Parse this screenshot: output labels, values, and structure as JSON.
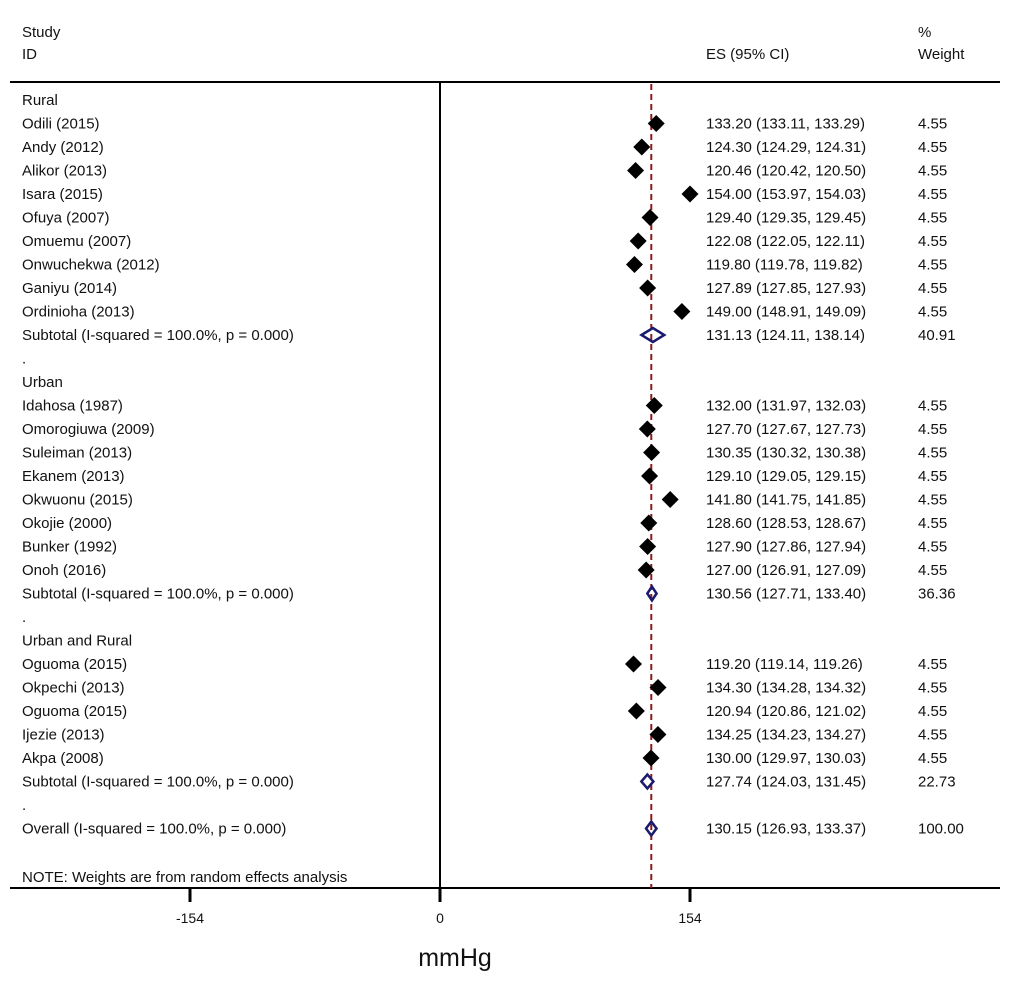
{
  "header": {
    "study_line1": "Study",
    "study_line2": "ID",
    "es_label": "ES (95% CI)",
    "weight_line1": "%",
    "weight_line2": "Weight"
  },
  "footer": {
    "note": "NOTE: Weights are from random effects analysis"
  },
  "colors": {
    "point": "#000000",
    "diamond": "#1a1a6e",
    "overall_line": "#8b1a1a",
    "axis": "#000000"
  },
  "chart_data": {
    "type": "forest",
    "xlabel": "mmHg",
    "xticks": [
      -154,
      0,
      154
    ],
    "xlim": [
      -154,
      154
    ],
    "overall_es": 130.15,
    "rows": [
      {
        "kind": "group",
        "label": "Rural"
      },
      {
        "kind": "study",
        "label": "Odili (2015)",
        "es": 133.2,
        "lo": 133.11,
        "hi": 133.29,
        "ci": "133.20 (133.11, 133.29)",
        "weight": "4.55"
      },
      {
        "kind": "study",
        "label": "Andy (2012)",
        "es": 124.3,
        "lo": 124.29,
        "hi": 124.31,
        "ci": "124.30 (124.29, 124.31)",
        "weight": "4.55"
      },
      {
        "kind": "study",
        "label": "Alikor (2013)",
        "es": 120.46,
        "lo": 120.42,
        "hi": 120.5,
        "ci": "120.46 (120.42, 120.50)",
        "weight": "4.55"
      },
      {
        "kind": "study",
        "label": "Isara (2015)",
        "es": 154.0,
        "lo": 153.97,
        "hi": 154.03,
        "ci": "154.00 (153.97, 154.03)",
        "weight": "4.55"
      },
      {
        "kind": "study",
        "label": "Ofuya (2007)",
        "es": 129.4,
        "lo": 129.35,
        "hi": 129.45,
        "ci": "129.40 (129.35, 129.45)",
        "weight": "4.55"
      },
      {
        "kind": "study",
        "label": "Omuemu (2007)",
        "es": 122.08,
        "lo": 122.05,
        "hi": 122.11,
        "ci": "122.08 (122.05, 122.11)",
        "weight": "4.55"
      },
      {
        "kind": "study",
        "label": "Onwuchekwa (2012)",
        "es": 119.8,
        "lo": 119.78,
        "hi": 119.82,
        "ci": "119.80 (119.78, 119.82)",
        "weight": "4.55"
      },
      {
        "kind": "study",
        "label": "Ganiyu (2014)",
        "es": 127.89,
        "lo": 127.85,
        "hi": 127.93,
        "ci": "127.89 (127.85, 127.93)",
        "weight": "4.55"
      },
      {
        "kind": "study",
        "label": "Ordinioha (2013)",
        "es": 149.0,
        "lo": 148.91,
        "hi": 149.09,
        "ci": "149.00 (148.91, 149.09)",
        "weight": "4.55"
      },
      {
        "kind": "subtotal",
        "label": "Subtotal  (I-squared = 100.0%, p = 0.000)",
        "es": 131.13,
        "lo": 124.11,
        "hi": 138.14,
        "ci": "131.13 (124.11, 138.14)",
        "weight": "40.91"
      },
      {
        "kind": "spacer",
        "label": "."
      },
      {
        "kind": "group",
        "label": "Urban"
      },
      {
        "kind": "study",
        "label": "Idahosa (1987)",
        "es": 132.0,
        "lo": 131.97,
        "hi": 132.03,
        "ci": "132.00 (131.97, 132.03)",
        "weight": "4.55"
      },
      {
        "kind": "study",
        "label": "Omorogiuwa (2009)",
        "es": 127.7,
        "lo": 127.67,
        "hi": 127.73,
        "ci": "127.70 (127.67, 127.73)",
        "weight": "4.55"
      },
      {
        "kind": "study",
        "label": "Suleiman (2013)",
        "es": 130.35,
        "lo": 130.32,
        "hi": 130.38,
        "ci": "130.35 (130.32, 130.38)",
        "weight": "4.55"
      },
      {
        "kind": "study",
        "label": "Ekanem (2013)",
        "es": 129.1,
        "lo": 129.05,
        "hi": 129.15,
        "ci": "129.10 (129.05, 129.15)",
        "weight": "4.55"
      },
      {
        "kind": "study",
        "label": "Okwuonu (2015)",
        "es": 141.8,
        "lo": 141.75,
        "hi": 141.85,
        "ci": "141.80 (141.75, 141.85)",
        "weight": "4.55"
      },
      {
        "kind": "study",
        "label": "Okojie (2000)",
        "es": 128.6,
        "lo": 128.53,
        "hi": 128.67,
        "ci": "128.60 (128.53, 128.67)",
        "weight": "4.55"
      },
      {
        "kind": "study",
        "label": "Bunker (1992)",
        "es": 127.9,
        "lo": 127.86,
        "hi": 127.94,
        "ci": "127.90 (127.86, 127.94)",
        "weight": "4.55"
      },
      {
        "kind": "study",
        "label": "Onoh (2016)",
        "es": 127.0,
        "lo": 126.91,
        "hi": 127.09,
        "ci": "127.00 (126.91, 127.09)",
        "weight": "4.55"
      },
      {
        "kind": "subtotal",
        "label": "Subtotal  (I-squared = 100.0%, p = 0.000)",
        "es": 130.56,
        "lo": 127.71,
        "hi": 133.4,
        "ci": "130.56 (127.71, 133.40)",
        "weight": "36.36"
      },
      {
        "kind": "spacer",
        "label": "."
      },
      {
        "kind": "group",
        "label": "Urban and Rural"
      },
      {
        "kind": "study",
        "label": "Oguoma (2015)",
        "es": 119.2,
        "lo": 119.14,
        "hi": 119.26,
        "ci": "119.20 (119.14, 119.26)",
        "weight": "4.55"
      },
      {
        "kind": "study",
        "label": "Okpechi (2013)",
        "es": 134.3,
        "lo": 134.28,
        "hi": 134.32,
        "ci": "134.30 (134.28, 134.32)",
        "weight": "4.55"
      },
      {
        "kind": "study",
        "label": "Oguoma (2015)",
        "es": 120.94,
        "lo": 120.86,
        "hi": 121.02,
        "ci": "120.94 (120.86, 121.02)",
        "weight": "4.55"
      },
      {
        "kind": "study",
        "label": "Ijezie (2013)",
        "es": 134.25,
        "lo": 134.23,
        "hi": 134.27,
        "ci": "134.25 (134.23, 134.27)",
        "weight": "4.55"
      },
      {
        "kind": "study",
        "label": "Akpa (2008)",
        "es": 130.0,
        "lo": 129.97,
        "hi": 130.03,
        "ci": "130.00 (129.97, 130.03)",
        "weight": "4.55"
      },
      {
        "kind": "subtotal",
        "label": "Subtotal  (I-squared = 100.0%, p = 0.000)",
        "es": 127.74,
        "lo": 124.03,
        "hi": 131.45,
        "ci": "127.74 (124.03, 131.45)",
        "weight": "22.73"
      },
      {
        "kind": "spacer",
        "label": "."
      },
      {
        "kind": "overall",
        "label": "Overall  (I-squared = 100.0%, p = 0.000)",
        "es": 130.15,
        "lo": 126.93,
        "hi": 133.37,
        "ci": "130.15 (126.93, 133.37)",
        "weight": "100.00"
      }
    ]
  }
}
